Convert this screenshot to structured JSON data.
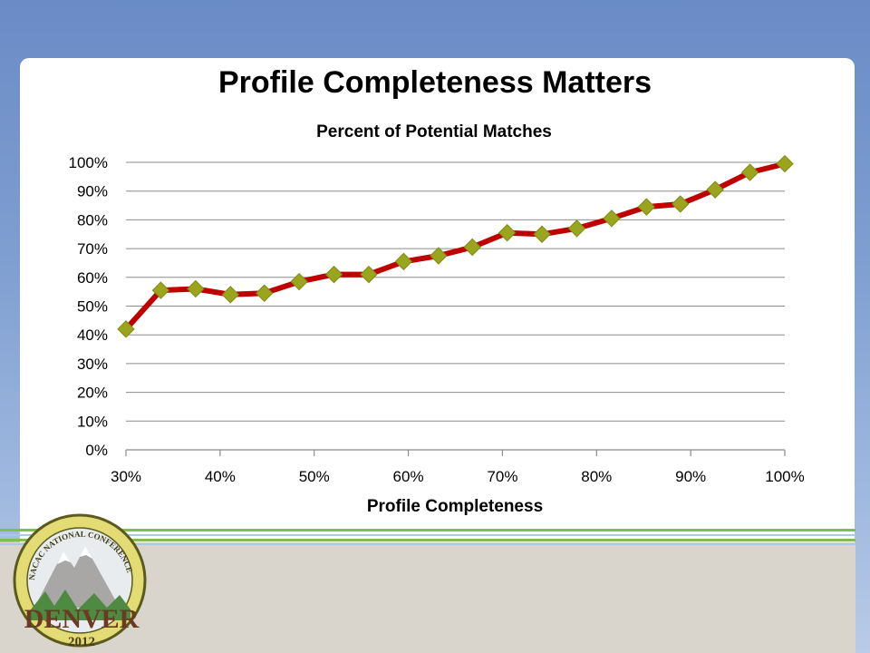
{
  "slide": {
    "title": "Profile Completeness Matters"
  },
  "chart_data": {
    "type": "line",
    "title": "Percent of Potential Matches",
    "xlabel": "Profile Completeness",
    "ylabel": "",
    "xlim": [
      30,
      100
    ],
    "ylim": [
      0,
      100
    ],
    "x_ticks": [
      "30%",
      "40%",
      "50%",
      "60%",
      "70%",
      "80%",
      "90%",
      "100%"
    ],
    "y_ticks": [
      "0%",
      "10%",
      "20%",
      "30%",
      "40%",
      "50%",
      "60%",
      "70%",
      "80%",
      "90%",
      "100%"
    ],
    "grid": true,
    "legend": "none",
    "series": [
      {
        "line_color": "#c00000",
        "marker": "diamond",
        "marker_color": "#9aa51d",
        "x": [
          30,
          33.7,
          37.4,
          41.1,
          44.7,
          48.4,
          52.1,
          55.8,
          59.5,
          63.2,
          66.8,
          70.5,
          74.2,
          77.9,
          81.6,
          85.3,
          88.9,
          92.6,
          96.3,
          100
        ],
        "y": [
          42,
          55.5,
          56,
          54,
          54.5,
          58.5,
          61,
          61,
          65.5,
          67.5,
          70.5,
          75.5,
          75,
          77,
          80.5,
          84.5,
          85.5,
          90.5,
          96.5,
          99.5
        ]
      }
    ]
  },
  "logo": {
    "arc_text": "NACAC NATIONAL CONFERENCE",
    "city": "DENVER",
    "year": "2012"
  }
}
